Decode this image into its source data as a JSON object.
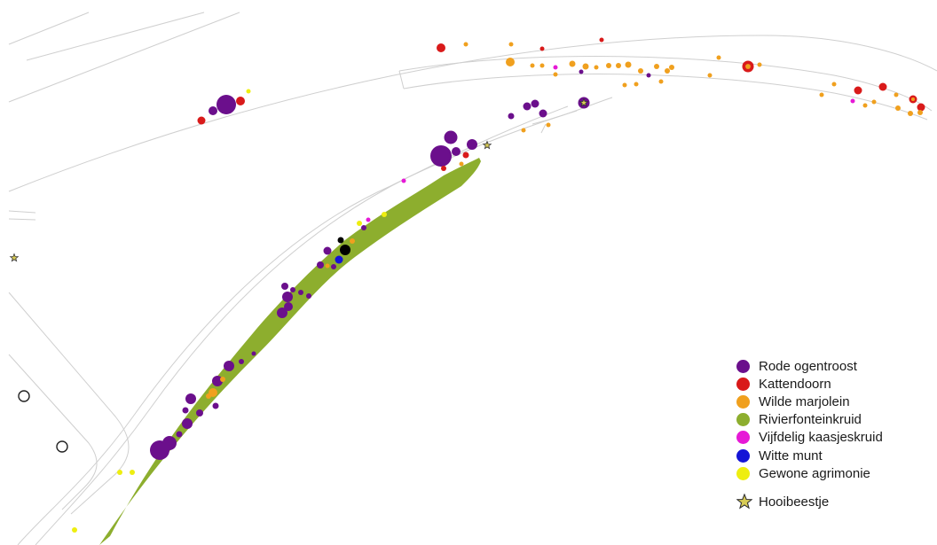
{
  "species": [
    {
      "key": "rode",
      "label": "Rode ogentroost",
      "color": "#6b0f8c"
    },
    {
      "key": "katten",
      "label": "Kattendoorn",
      "color": "#d91a1a"
    },
    {
      "key": "marjolein",
      "label": "Wilde marjolein",
      "color": "#f0a01e"
    },
    {
      "key": "rivier",
      "label": "Rivierfonteinkruid",
      "color": "#8dae2e"
    },
    {
      "key": "kaas",
      "label": "Vijfdelig kaasjeskruid",
      "color": "#e619d6"
    },
    {
      "key": "munt",
      "label": "Witte munt",
      "color": "#1414d6"
    },
    {
      "key": "agri",
      "label": "Gewone agrimonie",
      "color": "#eeee10"
    }
  ],
  "hooibeestje": {
    "label": "Hooibeestje",
    "color": "#d8cc55",
    "stroke": "#333333"
  },
  "other_colors": {
    "road_line": "#cfcfcf",
    "black_marker": "#000000",
    "open_circle": "#222222"
  }
}
